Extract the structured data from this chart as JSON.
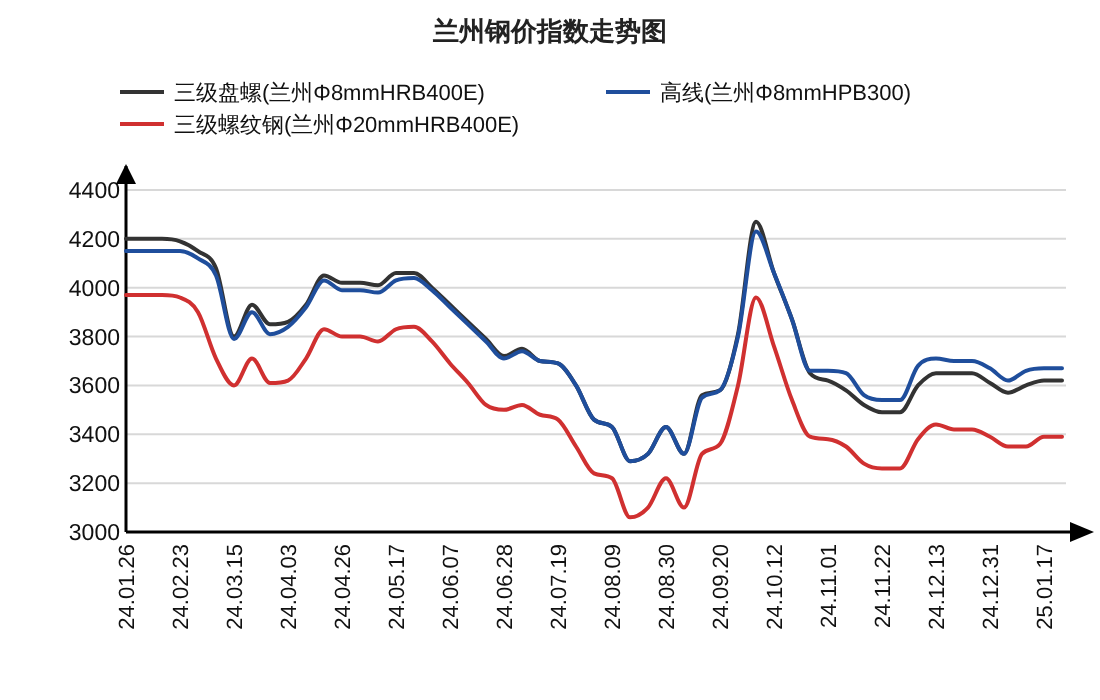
{
  "chart_data": {
    "type": "line",
    "title": "兰州钢价指数走势图",
    "categories": [
      "24.01.26",
      null,
      null,
      "24.02.23",
      null,
      null,
      "24.03.15",
      null,
      null,
      "24.04.03",
      null,
      null,
      "24.04.26",
      null,
      null,
      "24.05.17",
      null,
      null,
      "24.06.07",
      null,
      null,
      "24.06.28",
      null,
      null,
      "24.07.19",
      null,
      null,
      "24.08.09",
      null,
      null,
      "24.08.30",
      null,
      null,
      "24.09.20",
      null,
      null,
      "24.10.12",
      null,
      null,
      "24.11.01",
      null,
      null,
      "24.11.22",
      null,
      null,
      "24.12.13",
      null,
      null,
      "24.12.31",
      null,
      null,
      "25.01.17",
      null
    ],
    "series": [
      {
        "name": "三级盘螺(兰州Φ8mmHRB400E)",
        "color": "#333333",
        "values": [
          4200,
          4200,
          4200,
          4190,
          4150,
          4080,
          3800,
          3930,
          3850,
          3860,
          3930,
          4050,
          4020,
          4020,
          4010,
          4060,
          4060,
          4000,
          3930,
          3860,
          3790,
          3720,
          3750,
          3700,
          3690,
          3600,
          3460,
          3430,
          3290,
          3320,
          3430,
          3320,
          3560,
          3580,
          3810,
          4270,
          4060,
          3870,
          3650,
          3620,
          3580,
          3520,
          3490,
          3490,
          3600,
          3650,
          3650,
          3650,
          3610,
          3570,
          3600,
          3620,
          3620
        ]
      },
      {
        "name": "高线(兰州Φ8mmHPB300)",
        "color": "#1f4e9c",
        "values": [
          4150,
          4150,
          4150,
          4150,
          4120,
          4050,
          3790,
          3900,
          3810,
          3840,
          3920,
          4030,
          3990,
          3990,
          3980,
          4030,
          4040,
          3990,
          3920,
          3850,
          3780,
          3710,
          3740,
          3700,
          3690,
          3600,
          3460,
          3430,
          3290,
          3320,
          3430,
          3320,
          3550,
          3580,
          3800,
          4230,
          4060,
          3870,
          3660,
          3660,
          3650,
          3560,
          3540,
          3540,
          3680,
          3710,
          3700,
          3700,
          3670,
          3620,
          3660,
          3670,
          3670
        ]
      },
      {
        "name": "三级螺纹钢(兰州Φ20mmHRB400E)",
        "color": "#d03030",
        "values": [
          3970,
          3970,
          3970,
          3960,
          3900,
          3710,
          3600,
          3710,
          3610,
          3620,
          3710,
          3830,
          3800,
          3800,
          3780,
          3830,
          3840,
          3780,
          3690,
          3610,
          3520,
          3500,
          3520,
          3480,
          3460,
          3350,
          3240,
          3220,
          3060,
          3100,
          3220,
          3100,
          3320,
          3360,
          3600,
          3960,
          3760,
          3540,
          3390,
          3380,
          3350,
          3280,
          3260,
          3260,
          3380,
          3440,
          3420,
          3420,
          3390,
          3350,
          3350,
          3390,
          3390
        ]
      }
    ],
    "ylim": [
      3000,
      4400
    ],
    "yticks": [
      3000,
      3200,
      3400,
      3600,
      3800,
      4000,
      4200,
      4400
    ],
    "grid": "y",
    "legend": "top"
  }
}
